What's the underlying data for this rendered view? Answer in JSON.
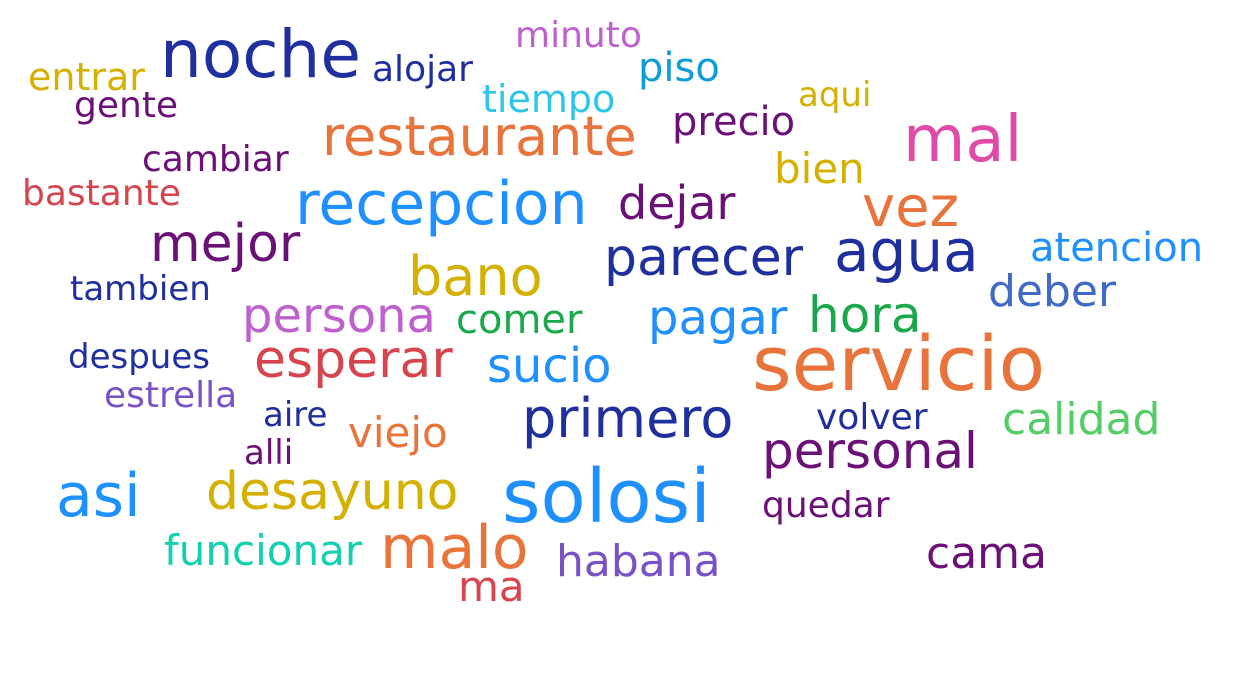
{
  "words": [
    {
      "text": "noche",
      "color": "#1f2f9e",
      "weight": 66
    },
    {
      "text": "minuto",
      "color": "#c060d0",
      "weight": 36
    },
    {
      "text": "entrar",
      "color": "#d4b000",
      "weight": 38
    },
    {
      "text": "alojar",
      "color": "#1f2f9e",
      "weight": 36
    },
    {
      "text": "piso",
      "color": "#0f9dd6",
      "weight": 40
    },
    {
      "text": "gente",
      "color": "#6b1077",
      "weight": 36
    },
    {
      "text": "tiempo",
      "color": "#2ec6e8",
      "weight": 38
    },
    {
      "text": "aqui",
      "color": "#d4b000",
      "weight": 34
    },
    {
      "text": "restaurante",
      "color": "#e8743b",
      "weight": 54
    },
    {
      "text": "precio",
      "color": "#6b1077",
      "weight": 40
    },
    {
      "text": "mal",
      "color": "#e04aa8",
      "weight": 64
    },
    {
      "text": "cambiar",
      "color": "#6b1077",
      "weight": 36
    },
    {
      "text": "bien",
      "color": "#d4b000",
      "weight": 42
    },
    {
      "text": "bastante",
      "color": "#d6444d",
      "weight": 36
    },
    {
      "text": "recepcion",
      "color": "#1e90ff",
      "weight": 60
    },
    {
      "text": "dejar",
      "color": "#6b1077",
      "weight": 46
    },
    {
      "text": "vez",
      "color": "#e8743b",
      "weight": 56
    },
    {
      "text": "mejor",
      "color": "#6b1077",
      "weight": 52
    },
    {
      "text": "bano",
      "color": "#d4b000",
      "weight": 54
    },
    {
      "text": "parecer",
      "color": "#1f2f9e",
      "weight": 52
    },
    {
      "text": "agua",
      "color": "#1f2f9e",
      "weight": 58
    },
    {
      "text": "atencion",
      "color": "#1e90ff",
      "weight": 40
    },
    {
      "text": "tambien",
      "color": "#1f2f9e",
      "weight": 34
    },
    {
      "text": "deber",
      "color": "#4169c8",
      "weight": 44
    },
    {
      "text": "persona",
      "color": "#c060d0",
      "weight": 48
    },
    {
      "text": "comer",
      "color": "#1aa84a",
      "weight": 40
    },
    {
      "text": "pagar",
      "color": "#1e90ff",
      "weight": 48
    },
    {
      "text": "hora",
      "color": "#1aa84a",
      "weight": 50
    },
    {
      "text": "servicio",
      "color": "#e8743b",
      "weight": 76
    },
    {
      "text": "despues",
      "color": "#1f2f9e",
      "weight": 34
    },
    {
      "text": "esperar",
      "color": "#d6444d",
      "weight": 52
    },
    {
      "text": "sucio",
      "color": "#1e90ff",
      "weight": 48
    },
    {
      "text": "estrella",
      "color": "#7a52c8",
      "weight": 36
    },
    {
      "text": "aire",
      "color": "#1f2f9e",
      "weight": 34
    },
    {
      "text": "primero",
      "color": "#1f2f9e",
      "weight": 54
    },
    {
      "text": "volver",
      "color": "#1f2f9e",
      "weight": 36
    },
    {
      "text": "calidad",
      "color": "#55cc66",
      "weight": 44
    },
    {
      "text": "viejo",
      "color": "#e8743b",
      "weight": 42
    },
    {
      "text": "alli",
      "color": "#6b1077",
      "weight": 34
    },
    {
      "text": "personal",
      "color": "#6b1077",
      "weight": 50
    },
    {
      "text": "asi",
      "color": "#1e90ff",
      "weight": 60
    },
    {
      "text": "desayuno",
      "color": "#d4b000",
      "weight": 52
    },
    {
      "text": "solosi",
      "color": "#1e90ff",
      "weight": 74
    },
    {
      "text": "quedar",
      "color": "#6b1077",
      "weight": 36
    },
    {
      "text": "funcionar",
      "color": "#12d0b0",
      "weight": 42
    },
    {
      "text": "malo",
      "color": "#e8743b",
      "weight": 60
    },
    {
      "text": "cama",
      "color": "#6b1077",
      "weight": 44
    },
    {
      "text": "habana",
      "color": "#7a52c8",
      "weight": 44
    },
    {
      "text": "ma",
      "color": "#d6444d",
      "weight": 42
    }
  ]
}
